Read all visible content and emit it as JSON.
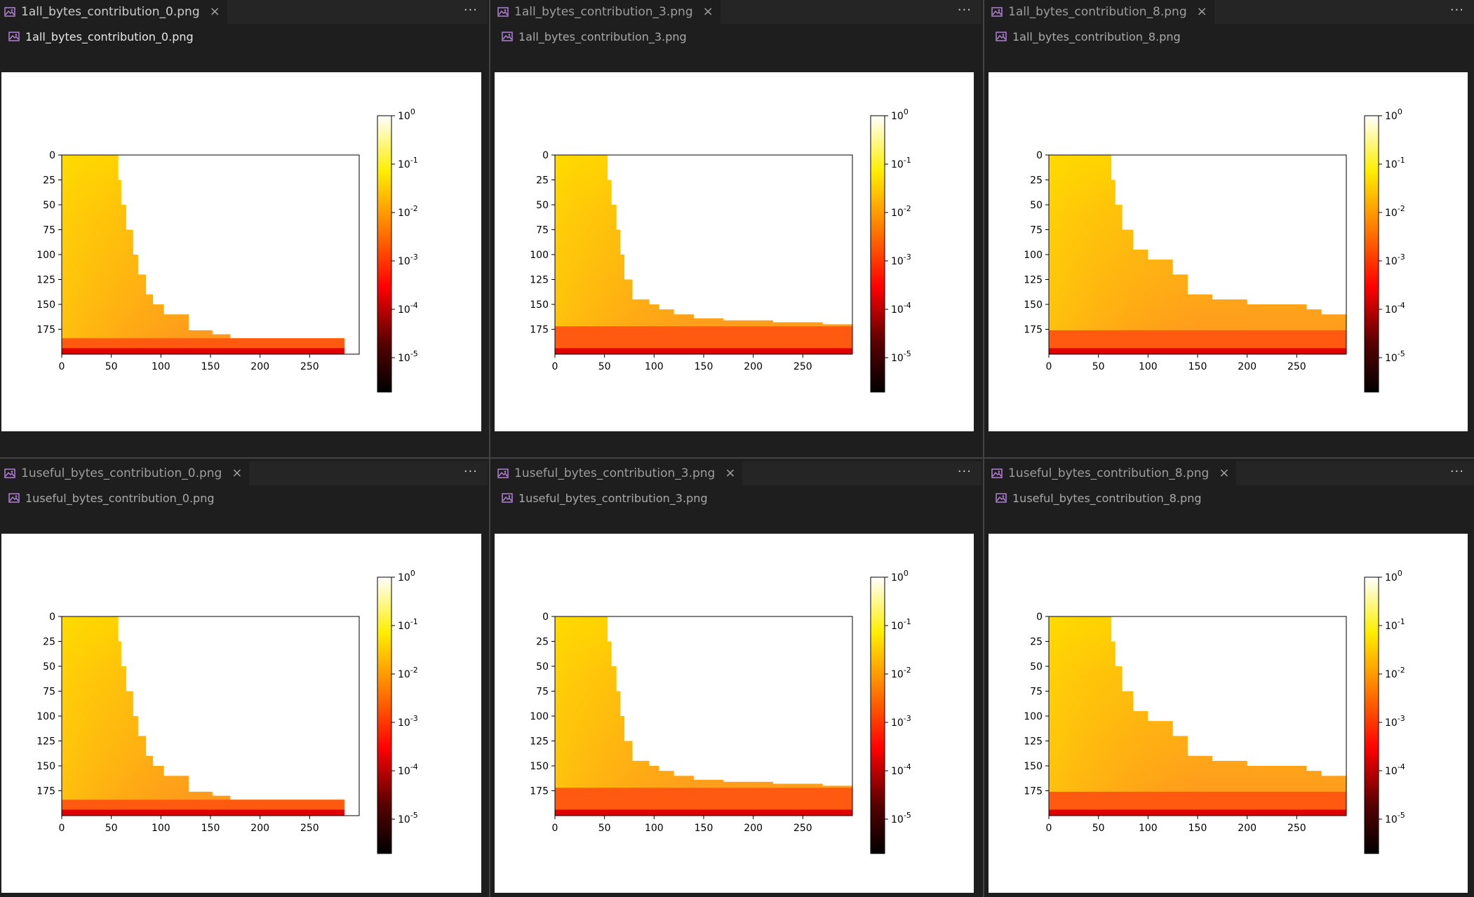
{
  "panes": [
    {
      "tab": "1all_bytes_contribution_0.png",
      "breadcrumb": "1all_bytes_contribution_0.png",
      "active": true,
      "cliff": [
        [
          0,
          57
        ],
        [
          25,
          60
        ],
        [
          50,
          65
        ],
        [
          75,
          72
        ],
        [
          100,
          77
        ],
        [
          120,
          85
        ],
        [
          140,
          92
        ],
        [
          150,
          103
        ],
        [
          160,
          128
        ],
        [
          176,
          152
        ],
        [
          180,
          170
        ],
        [
          184,
          285
        ]
      ],
      "bottom_start": 184,
      "colorbar_powers": [
        "0",
        "-1",
        "-2",
        "-3",
        "-4",
        "-5"
      ]
    },
    {
      "tab": "1all_bytes_contribution_3.png",
      "breadcrumb": "1all_bytes_contribution_3.png",
      "active": false,
      "cliff": [
        [
          0,
          53
        ],
        [
          25,
          57
        ],
        [
          50,
          62
        ],
        [
          75,
          66
        ],
        [
          100,
          70
        ],
        [
          125,
          78
        ],
        [
          145,
          95
        ],
        [
          150,
          105
        ],
        [
          155,
          120
        ],
        [
          160,
          140
        ],
        [
          164,
          170
        ],
        [
          166,
          220
        ],
        [
          168,
          270
        ],
        [
          170,
          300
        ]
      ],
      "bottom_start": 172,
      "colorbar_powers": [
        "0",
        "-1",
        "-2",
        "-3",
        "-4",
        "-5"
      ]
    },
    {
      "tab": "1all_bytes_contribution_8.png",
      "breadcrumb": "1all_bytes_contribution_8.png",
      "active": false,
      "cliff": [
        [
          0,
          63
        ],
        [
          25,
          67
        ],
        [
          50,
          74
        ],
        [
          75,
          85
        ],
        [
          95,
          100
        ],
        [
          105,
          125
        ],
        [
          120,
          140
        ],
        [
          140,
          165
        ],
        [
          145,
          200
        ],
        [
          150,
          260
        ],
        [
          155,
          275
        ],
        [
          160,
          300
        ]
      ],
      "bottom_start": 176,
      "colorbar_powers": [
        "0",
        "-1",
        "-2",
        "-3",
        "-4",
        "-5"
      ]
    },
    {
      "tab": "1useful_bytes_contribution_0.png",
      "breadcrumb": "1useful_bytes_contribution_0.png",
      "active": false,
      "cliff": [
        [
          0,
          57
        ],
        [
          25,
          60
        ],
        [
          50,
          65
        ],
        [
          75,
          72
        ],
        [
          100,
          77
        ],
        [
          120,
          85
        ],
        [
          140,
          92
        ],
        [
          150,
          103
        ],
        [
          160,
          128
        ],
        [
          176,
          152
        ],
        [
          180,
          170
        ],
        [
          184,
          285
        ]
      ],
      "bottom_start": 184,
      "colorbar_powers": [
        "0",
        "-1",
        "-2",
        "-3",
        "-4",
        "-5"
      ]
    },
    {
      "tab": "1useful_bytes_contribution_3.png",
      "breadcrumb": "1useful_bytes_contribution_3.png",
      "active": false,
      "cliff": [
        [
          0,
          53
        ],
        [
          25,
          57
        ],
        [
          50,
          62
        ],
        [
          75,
          66
        ],
        [
          100,
          70
        ],
        [
          125,
          78
        ],
        [
          145,
          95
        ],
        [
          150,
          105
        ],
        [
          155,
          120
        ],
        [
          160,
          140
        ],
        [
          164,
          170
        ],
        [
          166,
          220
        ],
        [
          168,
          270
        ],
        [
          170,
          300
        ]
      ],
      "bottom_start": 172,
      "colorbar_powers": [
        "0",
        "-1",
        "-2",
        "-3",
        "-4",
        "-5"
      ]
    },
    {
      "tab": "1useful_bytes_contribution_8.png",
      "breadcrumb": "1useful_bytes_contribution_8.png",
      "active": false,
      "cliff": [
        [
          0,
          63
        ],
        [
          25,
          67
        ],
        [
          50,
          74
        ],
        [
          75,
          85
        ],
        [
          95,
          100
        ],
        [
          105,
          125
        ],
        [
          120,
          140
        ],
        [
          140,
          165
        ],
        [
          145,
          200
        ],
        [
          150,
          260
        ],
        [
          155,
          275
        ],
        [
          160,
          300
        ]
      ],
      "bottom_start": 176,
      "colorbar_powers": [
        "0",
        "-1",
        "-2",
        "-3",
        "-4",
        "-5"
      ]
    }
  ],
  "axis": {
    "y_ticks": [
      "0",
      "25",
      "50",
      "75",
      "100",
      "125",
      "150",
      "175"
    ],
    "x_ticks": [
      "0",
      "50",
      "100",
      "150",
      "200",
      "250"
    ],
    "colorbar_base": "10"
  },
  "icons": {
    "file": "image-file-icon",
    "close": "close-icon",
    "more": "more-actions-icon"
  },
  "colors": {
    "file_icon": "#b180d7"
  },
  "more_label": "···",
  "close_label": "×"
}
